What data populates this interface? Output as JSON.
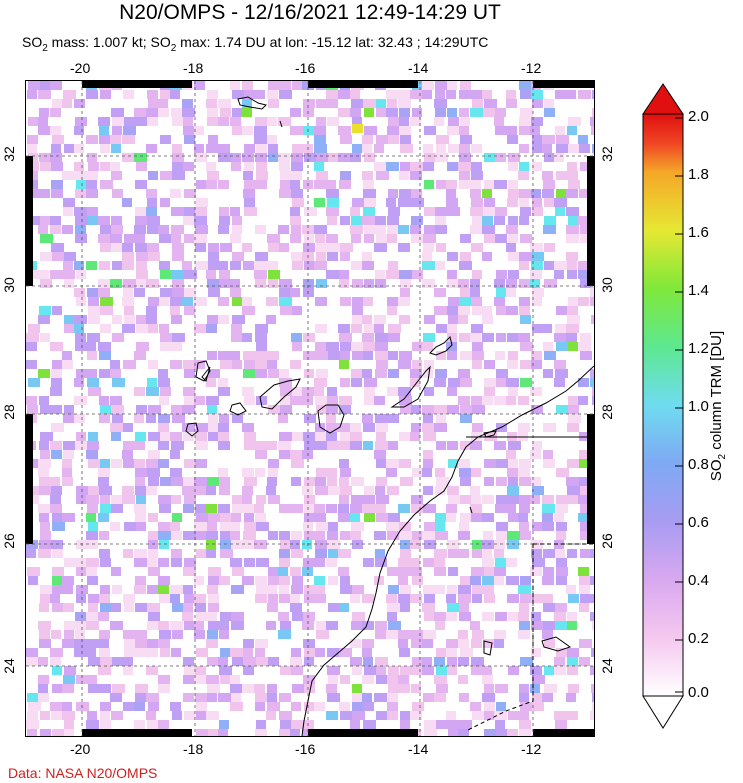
{
  "title": "N20/OMPS - 12/16/2021 12:49-14:29 UT",
  "subtitle": {
    "mass_prefix": "SO",
    "mass_sub": "2",
    "mass_text": " mass: 1.007 kt; SO",
    "max_sub": "2",
    "max_text": " max: 1.74 DU at lon: -15.12 lat: 32.43 ; 14:29UTC"
  },
  "map": {
    "lon_ticks": [
      "-20",
      "-18",
      "-16",
      "-14",
      "-12"
    ],
    "lat_ticks": [
      "32",
      "30",
      "28",
      "26",
      "24"
    ],
    "lon_range": [
      -21,
      -11
    ],
    "lat_range": [
      23,
      33
    ],
    "grid": "dashed",
    "colors": {
      "coast": "#000000",
      "grid": "#555555"
    }
  },
  "colorbar": {
    "label_prefix": "SO",
    "label_sub": "2",
    "label_suffix": " column TRM [DU]",
    "ticks": [
      "2.0",
      "1.8",
      "1.6",
      "1.4",
      "1.2",
      "1.0",
      "0.8",
      "0.6",
      "0.4",
      "0.2",
      "0.0"
    ],
    "min": 0.0,
    "max": 2.0,
    "colors": [
      "#ffffff",
      "#f5c8f0",
      "#d8a8f0",
      "#a89cf2",
      "#7fa9f4",
      "#6fdcf0",
      "#5de890",
      "#7fe83a",
      "#e6e833",
      "#f5a728",
      "#ef4523",
      "#e01010"
    ]
  },
  "credit": "Data: NASA N20/OMPS"
}
